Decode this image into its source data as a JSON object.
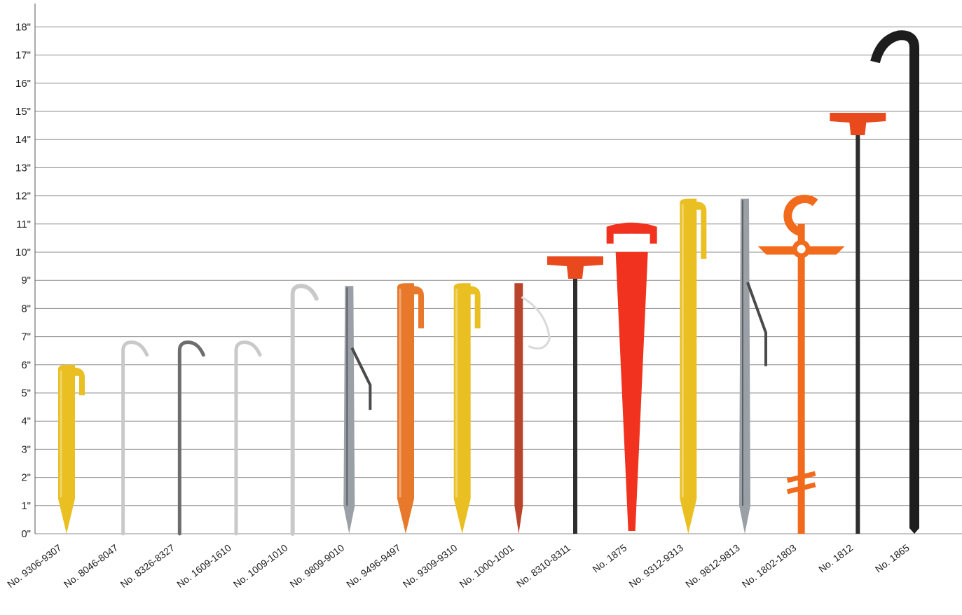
{
  "chart_data": {
    "type": "bar",
    "title": "",
    "xlabel": "",
    "ylabel": "",
    "ylim": [
      0,
      18
    ],
    "y_unit": "inches",
    "yticks": [
      "0\"",
      "1\"",
      "2\"",
      "3\"",
      "4\"",
      "5\"",
      "6\"",
      "7\"",
      "8\"",
      "9\"",
      "10\"",
      "11\"",
      "12\"",
      "13\"",
      "14\"",
      "15\"",
      "16\"",
      "17\"",
      "18\""
    ],
    "grid": true,
    "legend": "none",
    "categories": [
      "No. 9306-9307",
      "No. 8046-8047",
      "No. 8326-8327",
      "No. 1609-1610",
      "No. 1009-1010",
      "No. 9809-9010",
      "No. 9496-9497",
      "No. 9309-9310",
      "No. 1000-1001",
      "No. 8310-8311",
      "No. 1875",
      "No. 9312-9313",
      "No. 9812-9813",
      "No. 1802-1803",
      "No. 1812",
      "No. 1865"
    ],
    "values": [
      6,
      6.8,
      6.8,
      6.8,
      8.8,
      8.8,
      8.9,
      8.9,
      8.9,
      9.9,
      11,
      11.9,
      11.9,
      12.5,
      15,
      17.8
    ],
    "stake_styles": [
      "plastic-yellow",
      "wire-hook",
      "wire-hook-dark",
      "wire-hook",
      "wire-hook-twisted",
      "metal-blade",
      "plastic-orange",
      "plastic-yellow",
      "metal-cord",
      "tee-top-steel",
      "plastic-red-large",
      "plastic-yellow",
      "metal-blade",
      "screw-orange",
      "tee-top-steel",
      "steel-hook-black"
    ],
    "colors": {
      "plastic-yellow": "#e9bf22",
      "plastic-orange": "#e8782a",
      "plastic-red": "#f0321e",
      "screw-orange": "#f26a1b",
      "tee-cap": "#e84a1e",
      "wire": "#c9c9c9",
      "wire-dark": "#6d6d6d",
      "metal-blade": "#9aa0a6",
      "metal-rust": "#b9442b",
      "steel": "#2e2e2e",
      "black-steel": "#1d1d1d",
      "axis": "#555555",
      "grid": "#8c8c8c"
    }
  }
}
